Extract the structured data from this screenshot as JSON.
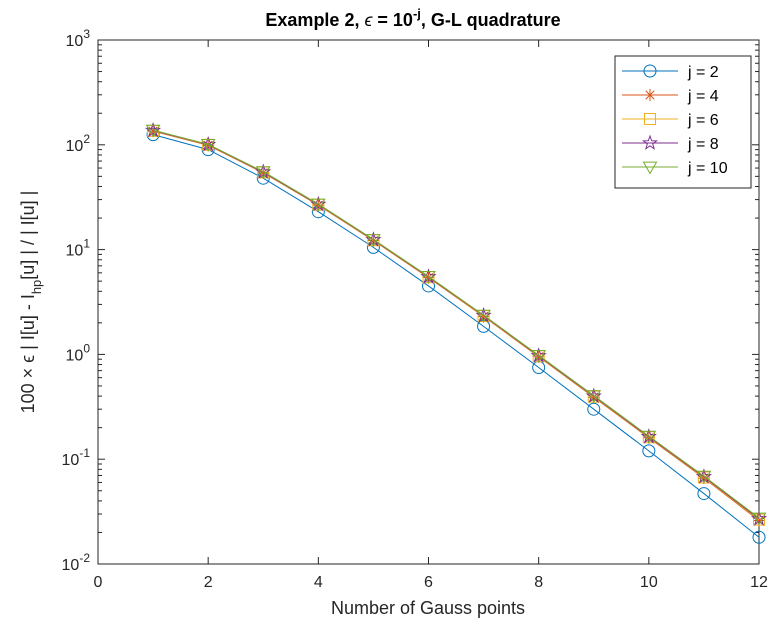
{
  "chart_data": {
    "type": "line",
    "title": {
      "main": "Example 2, ",
      "eps": "ϵ",
      "mid": " = 10",
      "exp": "-j",
      "tail": ", G-L quadrature"
    },
    "xlabel": "Number of Gauss points",
    "ylabel": {
      "pre": "100 × ϵ  | I[u] - I",
      "sub": "hp",
      "post": "[u] | / | I[u] |"
    },
    "xlim": [
      0,
      12
    ],
    "ylim": [
      0.01,
      1000
    ],
    "yscale": "log",
    "grid": false,
    "legend_position": "top-right",
    "x_ticks": [
      "0",
      "2",
      "4",
      "6",
      "8",
      "10",
      "12"
    ],
    "y_ticks": [
      {
        "base": "10",
        "exp": "-2"
      },
      {
        "base": "10",
        "exp": "-1"
      },
      {
        "base": "10",
        "exp": "0"
      },
      {
        "base": "10",
        "exp": "1"
      },
      {
        "base": "10",
        "exp": "2"
      },
      {
        "base": "10",
        "exp": "3"
      }
    ],
    "x": [
      1,
      2,
      3,
      4,
      5,
      6,
      7,
      8,
      9,
      10,
      11,
      12
    ],
    "series": [
      {
        "name": "j = 2",
        "color": "#0072BD",
        "marker": "circle",
        "values": [
          125,
          90,
          48,
          23,
          10.5,
          4.5,
          1.85,
          0.75,
          0.3,
          0.12,
          0.047,
          0.018
        ]
      },
      {
        "name": "j = 4",
        "color": "#D95319",
        "marker": "asterisk",
        "values": [
          135,
          99,
          54,
          26.5,
          12.2,
          5.4,
          2.3,
          0.95,
          0.39,
          0.16,
          0.066,
          0.026
        ]
      },
      {
        "name": "j = 6",
        "color": "#EDB120",
        "marker": "square",
        "values": [
          136,
          100,
          54.5,
          26.8,
          12.3,
          5.45,
          2.32,
          0.96,
          0.395,
          0.162,
          0.067,
          0.0265
        ]
      },
      {
        "name": "j = 8",
        "color": "#7E2F8E",
        "marker": "pentagram",
        "values": [
          137,
          100.5,
          55,
          27,
          12.4,
          5.5,
          2.35,
          0.97,
          0.4,
          0.164,
          0.068,
          0.027
        ]
      },
      {
        "name": "j = 10",
        "color": "#77AC30",
        "marker": "triangle-down",
        "values": [
          138,
          101,
          55.5,
          27.2,
          12.5,
          5.55,
          2.37,
          0.98,
          0.405,
          0.166,
          0.069,
          0.0275
        ]
      }
    ]
  }
}
